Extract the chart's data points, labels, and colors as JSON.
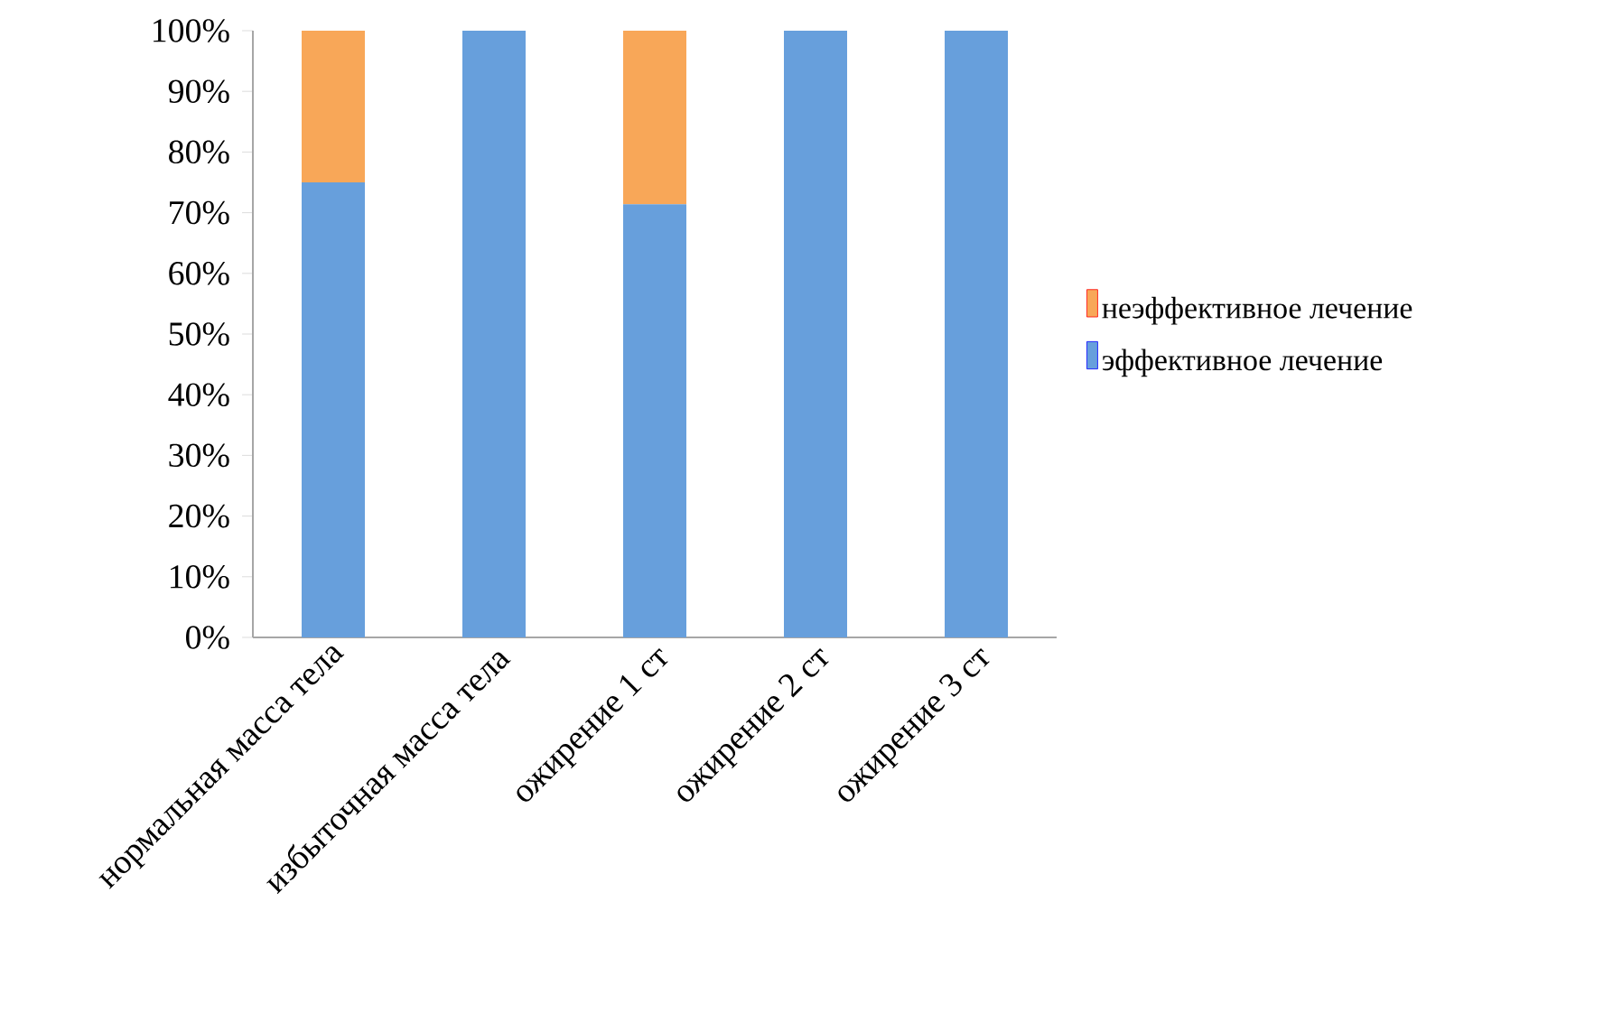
{
  "chart_data": {
    "type": "bar",
    "stacked": true,
    "categories": [
      "нормальная масса тела",
      "избыточная масса тела",
      "ожирение 1 ст",
      "ожирение 2 ст",
      "ожирение 3 ст"
    ],
    "series": [
      {
        "name": "эффективное лечение",
        "color": "#679fdc",
        "values": [
          75,
          100,
          71.4,
          100,
          100
        ]
      },
      {
        "name": "неэффективное лечение",
        "color": "#f8a758",
        "values": [
          25,
          0,
          28.6,
          0,
          0
        ]
      }
    ],
    "ylim": [
      0,
      100
    ],
    "yticks": [
      {
        "value": 0,
        "label": "0%"
      },
      {
        "value": 10,
        "label": "10%"
      },
      {
        "value": 20,
        "label": "20%"
      },
      {
        "value": 30,
        "label": "30%"
      },
      {
        "value": 40,
        "label": "40%"
      },
      {
        "value": 50,
        "label": "50%"
      },
      {
        "value": 60,
        "label": "60%"
      },
      {
        "value": 70,
        "label": "70%"
      },
      {
        "value": 80,
        "label": "80%"
      },
      {
        "value": 90,
        "label": "90%"
      },
      {
        "value": 100,
        "label": "100%"
      }
    ],
    "legend": "right",
    "grid": false
  }
}
